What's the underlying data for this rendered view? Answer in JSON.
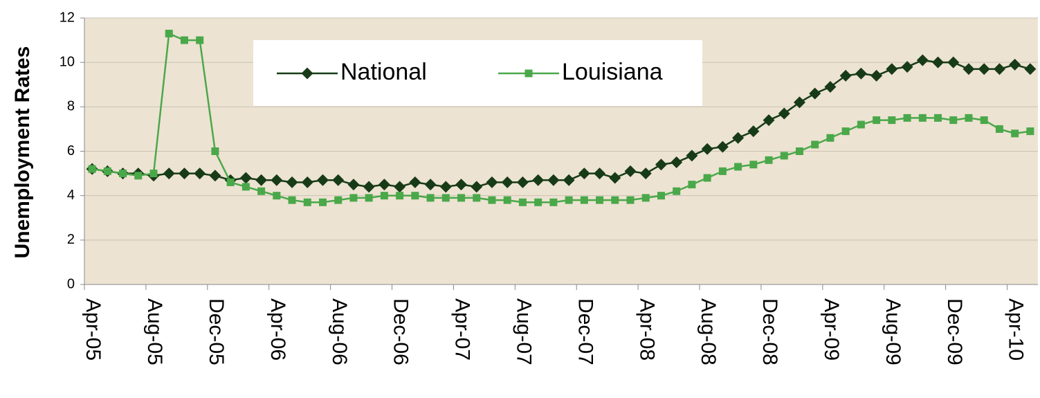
{
  "chart_data": {
    "type": "line",
    "y_label": "Unemployment Rates",
    "categories": [
      "Apr-05",
      null,
      null,
      null,
      "Aug-05",
      null,
      null,
      null,
      "Dec-05",
      null,
      null,
      null,
      "Apr-06",
      null,
      null,
      null,
      "Aug-06",
      null,
      null,
      null,
      "Dec-06",
      null,
      null,
      null,
      "Apr-07",
      null,
      null,
      null,
      "Aug-07",
      null,
      null,
      null,
      "Dec-07",
      null,
      null,
      null,
      "Apr-08",
      null,
      null,
      null,
      "Aug-08",
      null,
      null,
      null,
      "Dec-08",
      null,
      null,
      null,
      "Apr-09",
      null,
      null,
      null,
      "Aug-09",
      null,
      null,
      null,
      "Dec-09",
      null,
      null,
      null,
      "Apr-10",
      null
    ],
    "series": [
      {
        "name": "National",
        "color": "#173b17",
        "marker": "diamond",
        "values": [
          5.2,
          5.1,
          5.0,
          5.0,
          4.9,
          5.0,
          5.0,
          5.0,
          4.9,
          4.7,
          4.8,
          4.7,
          4.7,
          4.6,
          4.6,
          4.7,
          4.7,
          4.5,
          4.4,
          4.5,
          4.4,
          4.6,
          4.5,
          4.4,
          4.5,
          4.4,
          4.6,
          4.6,
          4.6,
          4.7,
          4.7,
          4.7,
          5.0,
          5.0,
          4.8,
          5.1,
          5.0,
          5.4,
          5.5,
          5.8,
          6.1,
          6.2,
          6.6,
          6.9,
          7.4,
          7.7,
          8.2,
          8.6,
          8.9,
          9.4,
          9.5,
          9.4,
          9.7,
          9.8,
          10.1,
          10.0,
          10.0,
          9.7,
          9.7,
          9.7,
          9.9,
          9.7
        ]
      },
      {
        "name": "Louisiana",
        "color": "#4aa84a",
        "marker": "square",
        "values": [
          5.2,
          5.1,
          5.0,
          4.9,
          5.0,
          11.3,
          11.0,
          11.0,
          6.0,
          4.6,
          4.4,
          4.2,
          4.0,
          3.8,
          3.7,
          3.7,
          3.8,
          3.9,
          3.9,
          4.0,
          4.0,
          4.0,
          3.9,
          3.9,
          3.9,
          3.9,
          3.8,
          3.8,
          3.7,
          3.7,
          3.7,
          3.8,
          3.8,
          3.8,
          3.8,
          3.8,
          3.9,
          4.0,
          4.2,
          4.5,
          4.8,
          5.1,
          5.3,
          5.4,
          5.6,
          5.8,
          6.0,
          6.3,
          6.6,
          6.9,
          7.2,
          7.4,
          7.4,
          7.5,
          7.5,
          7.5,
          7.4,
          7.5,
          7.4,
          7.0,
          6.8,
          6.9
        ]
      }
    ],
    "ylim": [
      0,
      12
    ],
    "yticks": [
      0,
      2,
      4,
      6,
      8,
      10,
      12
    ],
    "grid": true,
    "background": "#ede3d2"
  }
}
